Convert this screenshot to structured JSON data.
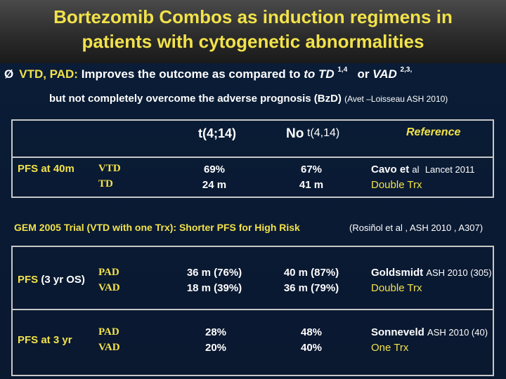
{
  "title": {
    "line1": "Bortezomib Combos as induction regimens in",
    "line2": "patients with cytogenetic abnormalities"
  },
  "bullet": {
    "arrow": "Ø",
    "lead": "VTD, PAD:",
    "text": " Improves the outcome as compared to ",
    "ref1_prefix": "to TD",
    "ref1_sup": "1,4",
    "or": "or",
    "ref2_prefix": "VAD",
    "ref2_sup": "2,3,"
  },
  "line2": {
    "text": "but not completely overcome the adverse prognosis (BzD)",
    "cite": "(Avet –Loisseau ASH 2010)"
  },
  "header": {
    "col1_a": "t(4;14)",
    "col2_a": "No",
    "col2_b": "t(4,14)",
    "col3": "Reference"
  },
  "row1": {
    "label": "PFS at 40m",
    "arm1": "VTD",
    "arm2": "TD",
    "v1a": "69%",
    "v1b": "24 m",
    "v2a": "67%",
    "v2b": "41 m",
    "ref_name": "Cavo et",
    "ref_al": "al",
    "ref_journal": "Lancet 2011",
    "ref_sub": "Double Trx"
  },
  "gem": {
    "text": "GEM 2005 Trial (VTD with one Trx): Shorter PFS for High Risk",
    "cite": "(Rosiñol et al , ASH 2010 , A307)"
  },
  "row2": {
    "label_a": "PFS",
    "label_b": "(3 yr OS)",
    "arm1": "PAD",
    "arm2": "VAD",
    "v1a": "36 m (76%)",
    "v1b": "18 m (39%)",
    "v2a": "40 m (87%)",
    "v2b": "36 m (79%)",
    "ref_name": "Goldsmidt",
    "ref_cite": "ASH 2010 (305)",
    "ref_sub": "Double Trx"
  },
  "row3": {
    "label": "PFS at 3 yr",
    "arm1": "PAD",
    "arm2": "VAD",
    "v1a": "28%",
    "v1b": "20%",
    "v2a": "48%",
    "v2b": "40%",
    "ref_name": "Sonneveld",
    "ref_cite": "ASH 2010 (40)",
    "ref_sub": "One Trx"
  },
  "colors": {
    "yellow": "#f2e24a",
    "white": "#ffffff",
    "bg": "#0a1a33",
    "title_bg": "#2a2a2a"
  }
}
